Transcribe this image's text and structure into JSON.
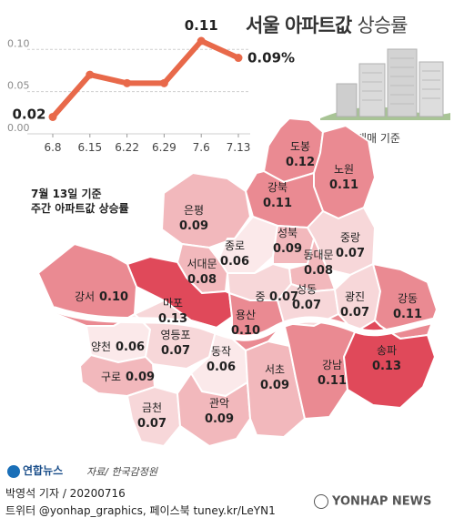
{
  "title_main": "서울 아파트값",
  "title_rest": "상승률",
  "caption": "매매 기준",
  "subtitle_line1": "7월 13일 기준",
  "subtitle_line2": "주간 아파트값 상승률",
  "source": "자료/ 한국감정원",
  "byline": "박영석 기자 /  20200716",
  "social": "트위터 @yonhap_graphics, 페이스북 tuney.kr/LeYN1",
  "logo_text": "연합뉴스",
  "agency_text": "YONHAP NEWS",
  "chart_data": {
    "type": "line",
    "x": [
      "6.8",
      "6.15",
      "6.22",
      "6.29",
      "7.6",
      "7.13"
    ],
    "series": [
      {
        "values": [
          0.02,
          0.07,
          0.06,
          0.06,
          0.11,
          0.09
        ]
      }
    ],
    "data_labels": {
      "0": "0.02",
      "4": "0.11",
      "5": "0.09%"
    },
    "yticks": [
      "0.00",
      "0.05",
      "0.10"
    ],
    "ylim": [
      0,
      0.11
    ],
    "color": "#e8694a",
    "grid": true
  },
  "districts": [
    {
      "name": "도봉",
      "value": "0.12"
    },
    {
      "name": "노원",
      "value": "0.11"
    },
    {
      "name": "강북",
      "value": "0.11"
    },
    {
      "name": "은평",
      "value": "0.09"
    },
    {
      "name": "성북",
      "value": "0.09"
    },
    {
      "name": "중랑",
      "value": "0.07"
    },
    {
      "name": "종로",
      "value": "0.06"
    },
    {
      "name": "동대문",
      "value": "0.08"
    },
    {
      "name": "서대문",
      "value": "0.08"
    },
    {
      "name": "강서",
      "value": "0.10"
    },
    {
      "name": "마포",
      "value": "0.13"
    },
    {
      "name": "중",
      "value": "0.07"
    },
    {
      "name": "성동",
      "value": "0.07"
    },
    {
      "name": "광진",
      "value": "0.07"
    },
    {
      "name": "강동",
      "value": "0.11"
    },
    {
      "name": "용산",
      "value": "0.10"
    },
    {
      "name": "양천",
      "value": "0.06"
    },
    {
      "name": "영등포",
      "value": "0.07"
    },
    {
      "name": "동작",
      "value": "0.06"
    },
    {
      "name": "송파",
      "value": "0.13"
    },
    {
      "name": "구로",
      "value": "0.09"
    },
    {
      "name": "서초",
      "value": "0.09"
    },
    {
      "name": "강남",
      "value": "0.11"
    },
    {
      "name": "금천",
      "value": "0.07"
    },
    {
      "name": "관악",
      "value": "0.09"
    }
  ],
  "colors": {
    "max": "#e0495a",
    "high": "#ea8a92",
    "mid": "#f2b8bc",
    "low": "#f7d7d9",
    "lowest": "#fbe9ea"
  }
}
